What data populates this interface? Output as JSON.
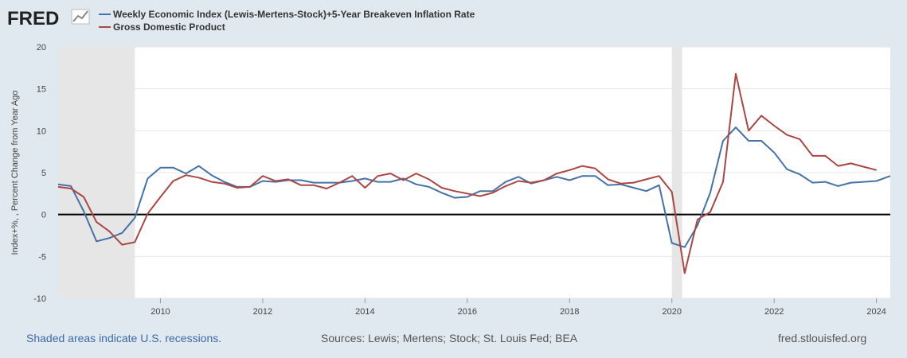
{
  "header": {
    "logo_text": "FRED"
  },
  "chart_data": {
    "type": "line",
    "ylabel": "Index+%, , Percent Change from Year Ago",
    "ylim": [
      -10,
      20
    ],
    "yticks": [
      -10,
      -5,
      0,
      5,
      10,
      15,
      20
    ],
    "xlim": [
      2008.0,
      2024.27
    ],
    "xticks": [
      "2010",
      "2012",
      "2014",
      "2016",
      "2018",
      "2020",
      "2022",
      "2024"
    ],
    "grid": true,
    "legend_position": "top-left",
    "recessions": [
      [
        2008.0,
        2009.5
      ],
      [
        2020.0,
        2020.2
      ]
    ],
    "series": [
      {
        "name": "Weekly Economic Index (Lewis-Mertens-Stock)+5-Year Breakeven Inflation Rate",
        "color": "#4572a7",
        "x": [
          2008.0,
          2008.25,
          2008.5,
          2008.75,
          2009.0,
          2009.25,
          2009.5,
          2009.75,
          2010.0,
          2010.25,
          2010.5,
          2010.75,
          2011.0,
          2011.25,
          2011.5,
          2011.75,
          2012.0,
          2012.25,
          2012.5,
          2012.75,
          2013.0,
          2013.25,
          2013.5,
          2013.75,
          2014.0,
          2014.25,
          2014.5,
          2014.75,
          2015.0,
          2015.25,
          2015.5,
          2015.75,
          2016.0,
          2016.25,
          2016.5,
          2016.75,
          2017.0,
          2017.25,
          2017.5,
          2017.75,
          2018.0,
          2018.25,
          2018.5,
          2018.75,
          2019.0,
          2019.25,
          2019.5,
          2019.75,
          2020.0,
          2020.25,
          2020.5,
          2020.75,
          2021.0,
          2021.25,
          2021.5,
          2021.75,
          2022.0,
          2022.25,
          2022.5,
          2022.75,
          2023.0,
          2023.25,
          2023.5,
          2023.75,
          2024.0,
          2024.27
        ],
        "y": [
          3.6,
          3.4,
          0.4,
          -3.2,
          -2.8,
          -2.2,
          -0.4,
          4.3,
          5.6,
          5.6,
          4.9,
          5.8,
          4.7,
          3.9,
          3.3,
          3.3,
          4.0,
          3.9,
          4.1,
          4.1,
          3.8,
          3.8,
          3.8,
          4.0,
          4.3,
          3.9,
          3.9,
          4.3,
          3.6,
          3.3,
          2.6,
          2.0,
          2.1,
          2.8,
          2.8,
          3.9,
          4.5,
          3.7,
          4.1,
          4.5,
          4.1,
          4.6,
          4.6,
          3.5,
          3.6,
          3.2,
          2.8,
          3.5,
          -3.4,
          -3.9,
          -1.3,
          2.6,
          8.8,
          10.4,
          8.8,
          8.8,
          7.4,
          5.4,
          4.8,
          3.8,
          3.9,
          3.4,
          3.8,
          3.9,
          4.0,
          4.6
        ]
      },
      {
        "name": "Gross Domestic Product",
        "color": "#aa4643",
        "x": [
          2008.0,
          2008.25,
          2008.5,
          2008.75,
          2009.0,
          2009.25,
          2009.5,
          2009.75,
          2010.0,
          2010.25,
          2010.5,
          2010.75,
          2011.0,
          2011.25,
          2011.5,
          2011.75,
          2012.0,
          2012.25,
          2012.5,
          2012.75,
          2013.0,
          2013.25,
          2013.5,
          2013.75,
          2014.0,
          2014.25,
          2014.5,
          2014.75,
          2015.0,
          2015.25,
          2015.5,
          2015.75,
          2016.0,
          2016.25,
          2016.5,
          2016.75,
          2017.0,
          2017.25,
          2017.5,
          2017.75,
          2018.0,
          2018.25,
          2018.5,
          2018.75,
          2019.0,
          2019.25,
          2019.5,
          2019.75,
          2020.0,
          2020.25,
          2020.5,
          2020.75,
          2021.0,
          2021.25,
          2021.5,
          2021.75,
          2022.0,
          2022.25,
          2022.5,
          2022.75,
          2023.0,
          2023.25,
          2023.5,
          2023.75,
          2024.0
        ],
        "y": [
          3.3,
          3.1,
          2.1,
          -0.9,
          -2.0,
          -3.6,
          -3.3,
          0.1,
          2.1,
          4.0,
          4.7,
          4.4,
          3.9,
          3.7,
          3.2,
          3.3,
          4.6,
          4.0,
          4.2,
          3.5,
          3.5,
          3.1,
          3.8,
          4.6,
          3.2,
          4.6,
          4.9,
          4.1,
          4.9,
          4.2,
          3.2,
          2.8,
          2.5,
          2.2,
          2.6,
          3.4,
          4.0,
          3.8,
          4.1,
          4.9,
          5.3,
          5.8,
          5.5,
          4.2,
          3.7,
          3.8,
          4.2,
          4.6,
          2.7,
          -7.0,
          -0.6,
          0.3,
          3.9,
          16.8,
          10.0,
          11.8,
          10.6,
          9.5,
          9.0,
          7.0,
          7.0,
          5.8,
          6.1,
          5.7,
          5.3
        ]
      }
    ]
  },
  "footer": {
    "left": "Shaded areas indicate U.S. recessions.",
    "middle": "Sources: Lewis; Mertens; Stock; St. Louis Fed; BEA",
    "right": "fred.stlouisfed.org"
  }
}
